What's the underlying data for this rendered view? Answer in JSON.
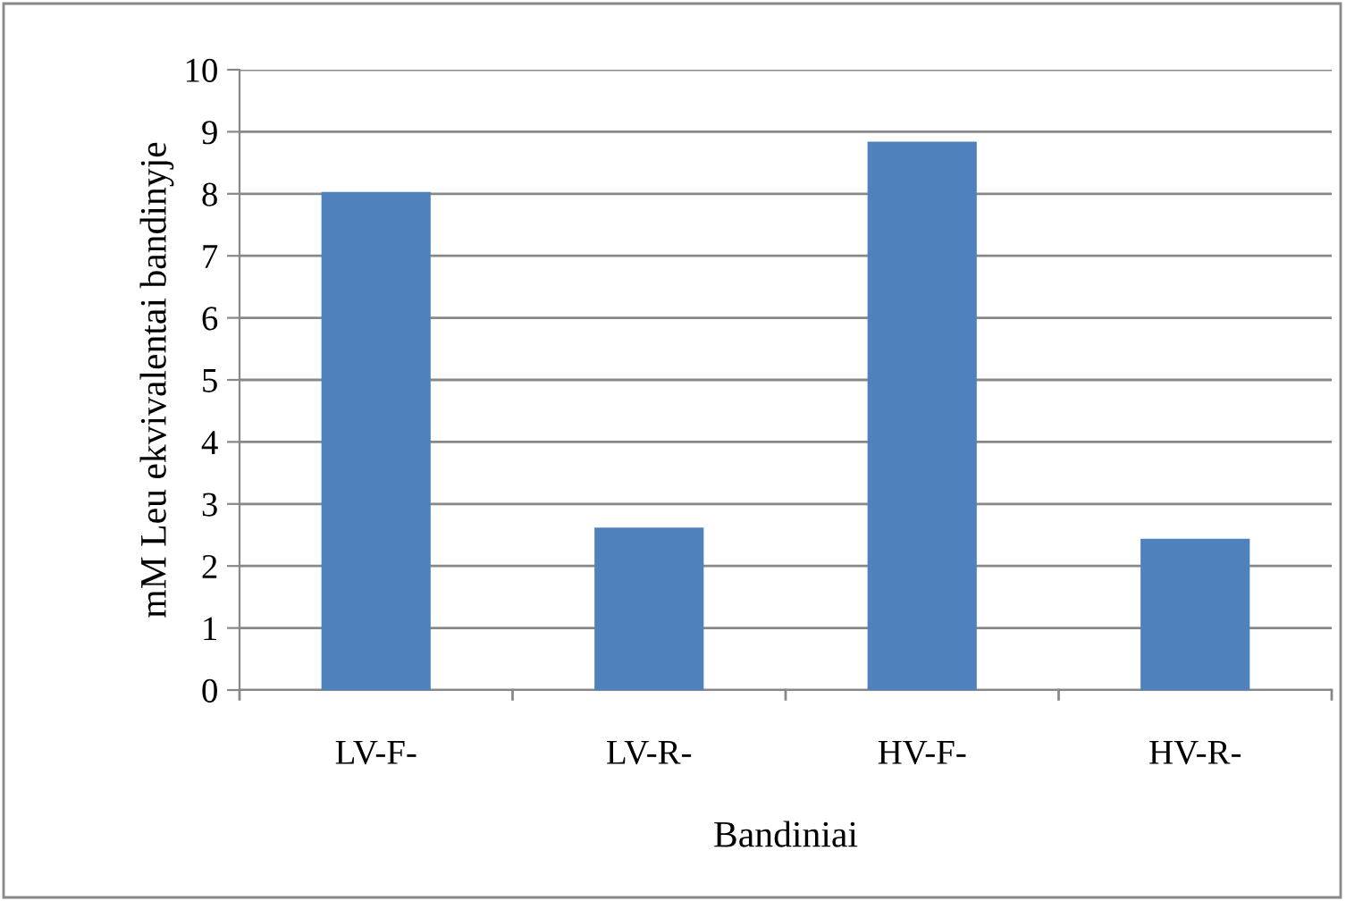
{
  "chart_data": {
    "type": "bar",
    "xlabel": "Bandiniai",
    "ylabel": "mM Leu ekvivalentai bandinyje",
    "categories": [
      "LV-F-",
      "LV-R-",
      "HV-F-",
      "HV-R-"
    ],
    "values": [
      8.03,
      2.62,
      8.84,
      2.44
    ],
    "color": "#4f81bd",
    "ylim": [
      0,
      10
    ],
    "yticks": [
      0,
      1,
      2,
      3,
      4,
      5,
      6,
      7,
      8,
      9,
      10
    ],
    "grid": "y"
  }
}
